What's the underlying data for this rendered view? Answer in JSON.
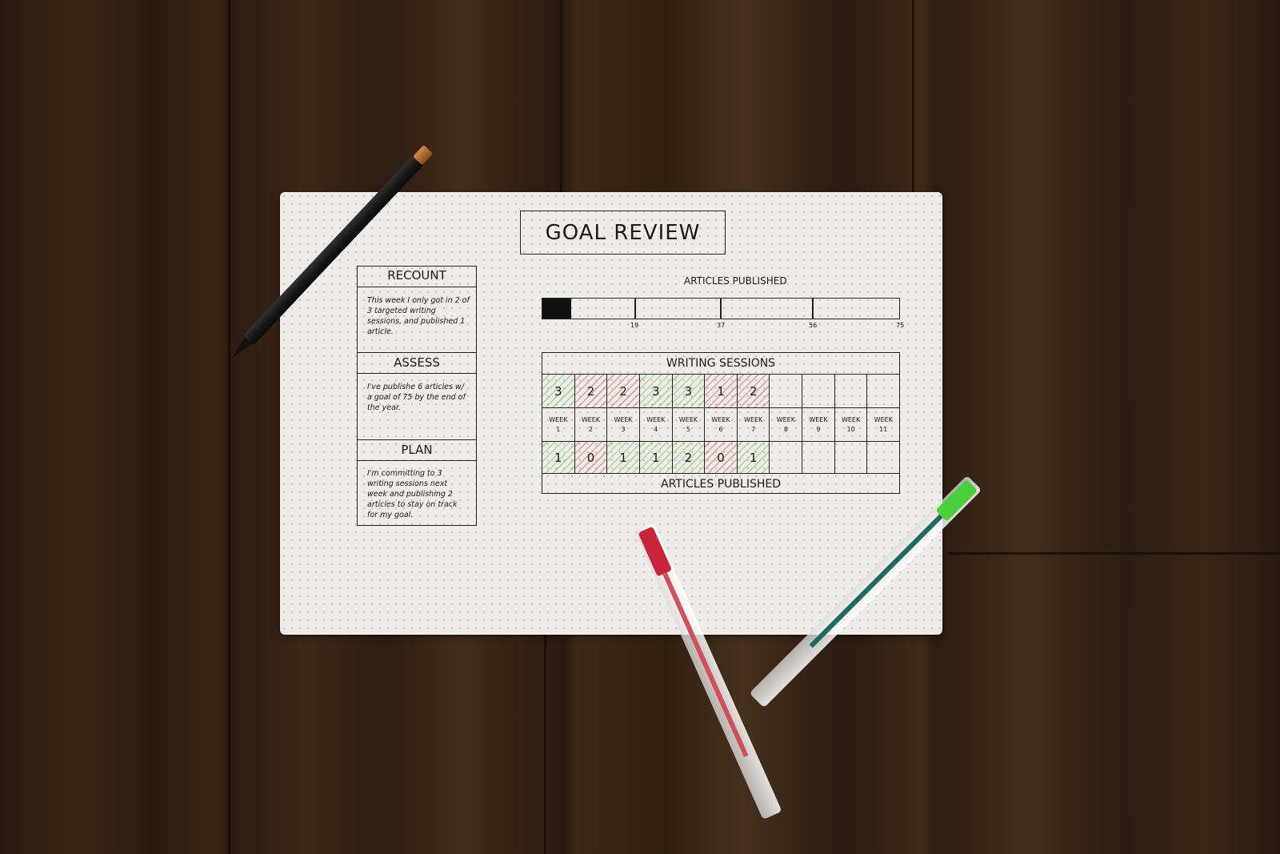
{
  "title": "GOAL REVIEW",
  "left_column": [
    {
      "heading": "RECOUNT",
      "text": "This week I only got in 2 of 3 targeted writing sessions, and published 1 article."
    },
    {
      "heading": "ASSESS",
      "text": "I've publishe 6 articles w/ a goal of 75 by the end of the year."
    },
    {
      "heading": "PLAN",
      "text": "I'm committing to 3 writing sessions next week and publishing 2 articles to stay on track for my goal."
    }
  ],
  "progress": {
    "label": "ARTICLES PUBLISHED",
    "value": 6,
    "goal": 75,
    "ticks": [
      "19",
      "37",
      "56",
      "75"
    ]
  },
  "table": {
    "header": "WRITING SESSIONS",
    "footer": "ARTICLES PUBLISHED",
    "weeks": [
      {
        "label": "WEEK",
        "num": "1",
        "sessions": "3",
        "s_color": "green",
        "articles": "1",
        "a_color": "green"
      },
      {
        "label": "WEEK",
        "num": "2",
        "sessions": "2",
        "s_color": "red",
        "articles": "0",
        "a_color": "red"
      },
      {
        "label": "WEEK",
        "num": "3",
        "sessions": "2",
        "s_color": "red",
        "articles": "1",
        "a_color": "green"
      },
      {
        "label": "WEEK",
        "num": "4",
        "sessions": "3",
        "s_color": "green",
        "articles": "1",
        "a_color": "green"
      },
      {
        "label": "WEEK",
        "num": "5",
        "sessions": "3",
        "s_color": "green",
        "articles": "2",
        "a_color": "green"
      },
      {
        "label": "WEEK",
        "num": "6",
        "sessions": "1",
        "s_color": "red",
        "articles": "0",
        "a_color": "red"
      },
      {
        "label": "WEEK",
        "num": "7",
        "sessions": "2",
        "s_color": "red",
        "articles": "1",
        "a_color": "green"
      },
      {
        "label": "WEEK",
        "num": "8",
        "sessions": "",
        "s_color": "",
        "articles": "",
        "a_color": ""
      },
      {
        "label": "WEEK",
        "num": "9",
        "sessions": "",
        "s_color": "",
        "articles": "",
        "a_color": ""
      },
      {
        "label": "WEEK",
        "num": "10",
        "sessions": "",
        "s_color": "",
        "articles": "",
        "a_color": ""
      },
      {
        "label": "WEEK",
        "num": "11",
        "sessions": "",
        "s_color": "",
        "articles": "",
        "a_color": ""
      }
    ]
  },
  "colors": {
    "wood": "#3a2616",
    "paper": "#eeece8",
    "green_highlight": "#78be5a",
    "red_highlight": "#d25a6e"
  }
}
